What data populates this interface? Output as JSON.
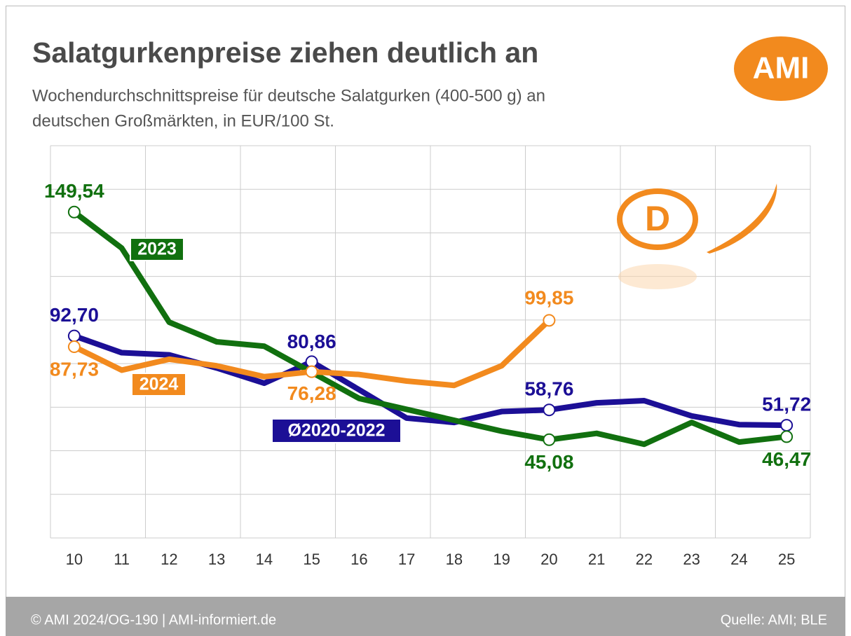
{
  "chart_data": {
    "type": "line",
    "title": "Salatgurkenpreise ziehen deutlich an",
    "subtitle": [
      "Wochendurchschnittspreise für deutsche Salatgurken (400-500 g) an",
      "deutschen Großmärkten, in EUR/100 St."
    ],
    "categories": [
      10,
      11,
      12,
      13,
      14,
      15,
      16,
      17,
      18,
      19,
      20,
      21,
      22,
      23,
      24,
      25
    ],
    "ylim": [
      0,
      180
    ],
    "yticks": [
      0,
      20,
      40,
      60,
      80,
      100,
      120,
      140,
      160,
      180
    ],
    "grid": true,
    "series": [
      {
        "name": "Ø2020-2022",
        "color": "#1c0f96",
        "values": [
          92.7,
          85,
          84,
          78,
          71,
          80.86,
          68,
          55,
          53,
          58,
          58.76,
          62,
          63,
          56,
          52,
          51.72
        ],
        "value_labels": [
          "92,70",
          null,
          null,
          null,
          null,
          "80,86",
          null,
          null,
          null,
          null,
          "58,76",
          null,
          null,
          null,
          null,
          "51,72"
        ]
      },
      {
        "name": "2023",
        "color": "#11700f",
        "values": [
          149.54,
          133,
          99,
          90,
          88,
          76,
          64,
          59,
          54,
          49,
          45.08,
          48,
          43,
          53,
          44,
          46.47
        ],
        "value_labels": [
          "149,54",
          null,
          null,
          null,
          null,
          null,
          null,
          null,
          null,
          null,
          "45,08",
          null,
          null,
          null,
          null,
          "46,47"
        ]
      },
      {
        "name": "2024",
        "color": "#f28a1e",
        "values": [
          87.73,
          77,
          82,
          79,
          74,
          76.28,
          75,
          72,
          70,
          79,
          99.85,
          null,
          null,
          null,
          null,
          null
        ],
        "value_labels": [
          "87,73",
          null,
          null,
          null,
          null,
          "76,28",
          null,
          null,
          null,
          null,
          "99,85",
          null,
          null,
          null,
          null,
          null
        ]
      }
    ]
  },
  "logo": "AMI",
  "badge": "D",
  "footer": {
    "copyright": "© AMI 2024/OG-190 | AMI-informiert.de",
    "source": "Quelle: AMI; BLE"
  }
}
